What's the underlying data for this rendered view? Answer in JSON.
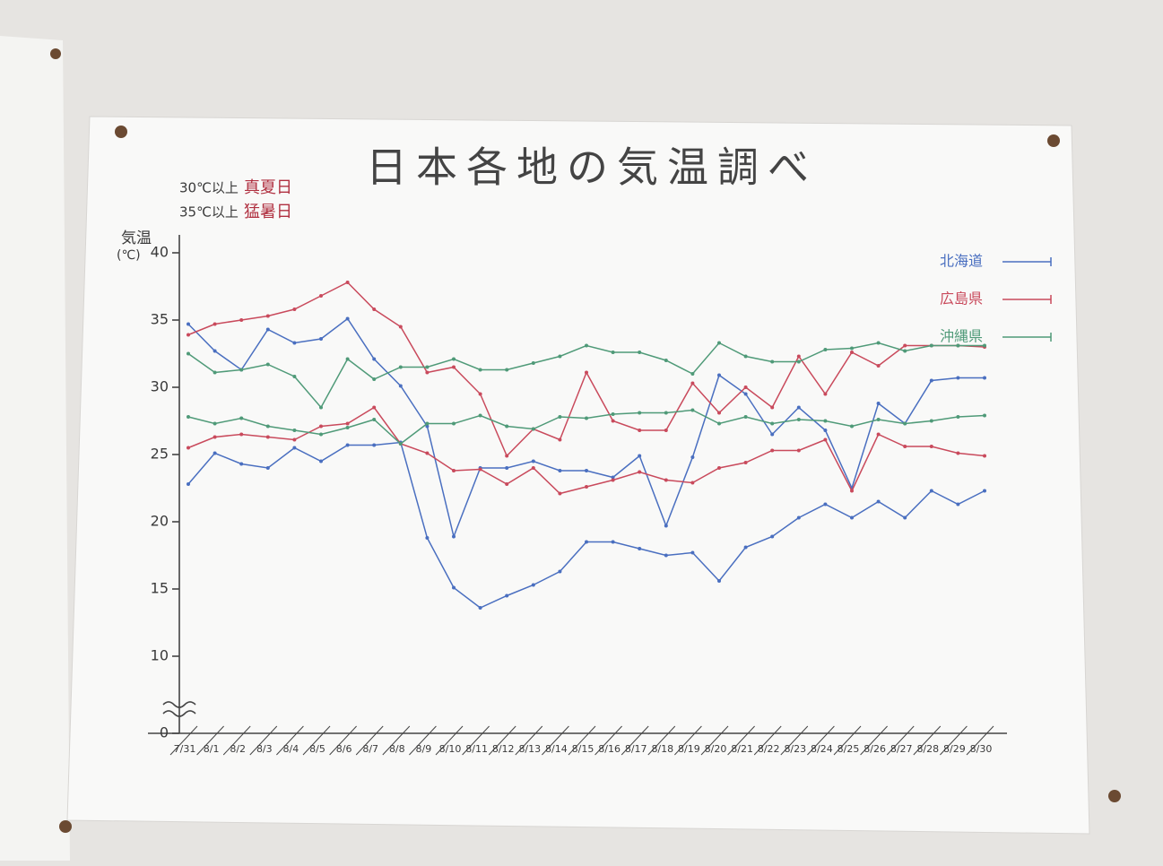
{
  "chart_data": {
    "type": "line",
    "title": "日本各地の気温調べ",
    "notes": [
      {
        "condition": "30℃以上",
        "label": "真夏日"
      },
      {
        "condition": "35℃以上",
        "label": "猛暑日"
      }
    ],
    "y_label": "気温",
    "y_unit": "(℃)",
    "categories": [
      "7/31",
      "8/1",
      "8/2",
      "8/3",
      "8/4",
      "8/5",
      "8/6",
      "8/7",
      "8/8",
      "8/9",
      "8/10",
      "8/11",
      "8/12",
      "8/13",
      "8/14",
      "8/15",
      "8/16",
      "8/17",
      "8/18",
      "8/19",
      "8/20",
      "8/21",
      "8/22",
      "8/23",
      "8/24",
      "8/25",
      "8/26",
      "8/27",
      "8/28",
      "8/29",
      "8/30"
    ],
    "ylim": [
      0,
      40
    ],
    "axis_break": [
      0,
      10
    ],
    "yticks": [
      0,
      10,
      15,
      20,
      25,
      30,
      35,
      40
    ],
    "series": [
      {
        "name": "北海道",
        "color": "#4a6fc0",
        "values": [
          34.7,
          32.7,
          31.3,
          34.3,
          33.3,
          33.6,
          35.1,
          32.1,
          30.1,
          27.1,
          18.9,
          24,
          24,
          24.5,
          23.8,
          23.8,
          23.3,
          24.9,
          19.7,
          24.8,
          30.9,
          29.5,
          26.5,
          28.5,
          26.8,
          22.5,
          28.8,
          27.3,
          30.5,
          30.7,
          30.7
        ],
        "min_values": [
          22.8,
          25.1,
          24.3,
          24,
          25.5,
          24.5,
          25.7,
          25.7,
          25.9,
          18.8,
          15.1,
          13.6,
          14.5,
          15.3,
          16.3,
          18.5,
          18.5,
          18,
          17.5,
          17.7,
          15.6,
          18.1,
          18.9,
          20.3,
          21.3,
          20.3,
          21.5,
          20.3,
          22.3,
          21.3,
          22.3
        ]
      },
      {
        "name": "広島県",
        "color": "#c94a5c",
        "values": [
          33.9,
          34.7,
          35,
          35.3,
          35.8,
          36.8,
          37.8,
          35.8,
          34.5,
          31.1,
          31.5,
          29.5,
          24.9,
          26.9,
          26.1,
          31.1,
          27.5,
          26.8,
          26.8,
          30.3,
          28.1,
          30,
          28.5,
          32.3,
          29.5,
          32.6,
          31.6,
          33.1,
          33.1,
          33.1,
          33
        ],
        "min_values": [
          25.5,
          26.3,
          26.5,
          26.3,
          26.1,
          27.1,
          27.3,
          28.5,
          25.8,
          25.1,
          23.8,
          23.9,
          22.8,
          24,
          22.1,
          22.6,
          23.1,
          23.7,
          23.1,
          22.9,
          24,
          24.4,
          25.3,
          25.3,
          26.1,
          22.3,
          26.5,
          25.6,
          25.6,
          25.1,
          24.9
        ]
      },
      {
        "name": "沖縄県",
        "color": "#4f9a78",
        "values": [
          32.5,
          31.1,
          31.3,
          31.7,
          30.8,
          28.5,
          32.1,
          30.6,
          31.5,
          31.5,
          32.1,
          31.3,
          31.3,
          31.8,
          32.3,
          33.1,
          32.6,
          32.6,
          32,
          31,
          33.3,
          32.3,
          31.9,
          31.9,
          32.8,
          32.9,
          33.3,
          32.7,
          33.1,
          33.1,
          33.1
        ],
        "min_values": [
          27.8,
          27.3,
          27.7,
          27.1,
          26.8,
          26.5,
          27,
          27.6,
          25.8,
          27.3,
          27.3,
          27.9,
          27.1,
          26.9,
          27.8,
          27.7,
          28,
          28.1,
          28.1,
          28.3,
          27.3,
          27.8,
          27.3,
          27.6,
          27.5,
          27.1,
          27.6,
          27.3,
          27.5,
          27.8,
          27.9
        ]
      }
    ]
  }
}
